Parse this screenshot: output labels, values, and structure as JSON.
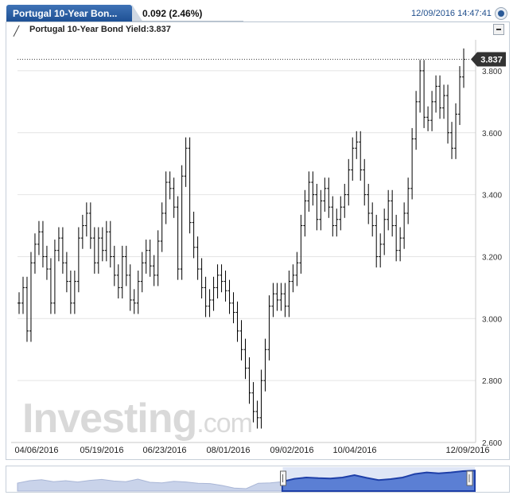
{
  "header": {
    "tab_title": "Portugal 10-Year Bon...",
    "change": "0.092 (2.46%)",
    "datetime": "12/09/2016 14:47:41"
  },
  "legend": {
    "text": "Portugal 10-Year Bond Yield:3.837"
  },
  "watermark": {
    "main": "Investing",
    "suffix": ".com"
  },
  "colors": {
    "tab": "#2b5a97",
    "line": "#000000",
    "navigator_fill": "#2a52be",
    "price_label_bg": "#333333"
  },
  "chart_data": {
    "type": "line",
    "title": "Portugal 10-Year Bond Yield",
    "xlabel": "",
    "ylabel": "",
    "x_ticks": [
      "04/06/2016",
      "05/19/2016",
      "06/23/2016",
      "08/01/2016",
      "09/02/2016",
      "10/04/2016",
      "12/09/2016"
    ],
    "y_ticks": [
      "2.600",
      "2.800",
      "3.000",
      "3.200",
      "3.400",
      "3.600",
      "3.800"
    ],
    "ylim": [
      2.6,
      3.9
    ],
    "last_value": 3.837,
    "last_value_label": "3.837",
    "grid": true,
    "series": [
      {
        "name": "Portugal 10-Year Bond Yield",
        "values": [
          3.05,
          3.1,
          2.96,
          3.18,
          3.24,
          3.28,
          3.2,
          3.16,
          3.05,
          3.22,
          3.26,
          3.18,
          3.12,
          3.05,
          3.12,
          3.26,
          3.3,
          3.34,
          3.26,
          3.18,
          3.26,
          3.22,
          3.28,
          3.2,
          3.14,
          3.1,
          3.2,
          3.14,
          3.06,
          3.05,
          3.12,
          3.18,
          3.22,
          3.17,
          3.14,
          3.25,
          3.34,
          3.44,
          3.42,
          3.36,
          3.16,
          3.46,
          3.55,
          3.31,
          3.23,
          3.16,
          3.1,
          3.04,
          3.06,
          3.1,
          3.14,
          3.12,
          3.09,
          3.05,
          3.02,
          2.96,
          2.9,
          2.84,
          2.76,
          2.7,
          2.68,
          2.8,
          2.9,
          3.04,
          3.08,
          3.06,
          3.08,
          3.04,
          3.12,
          3.14,
          3.18,
          3.3,
          3.38,
          3.44,
          3.4,
          3.32,
          3.38,
          3.42,
          3.36,
          3.3,
          3.32,
          3.36,
          3.4,
          3.48,
          3.55,
          3.57,
          3.48,
          3.4,
          3.34,
          3.3,
          3.2,
          3.24,
          3.32,
          3.38,
          3.3,
          3.22,
          3.26,
          3.34,
          3.42,
          3.58,
          3.7,
          3.8,
          3.65,
          3.64,
          3.7,
          3.75,
          3.68,
          3.72,
          3.6,
          3.55,
          3.66,
          3.78,
          3.837
        ]
      }
    ]
  },
  "navigator": {
    "values": [
      3.05,
      3.2,
      3.26,
      3.14,
      3.2,
      3.12,
      3.22,
      3.28,
      3.18,
      3.14,
      3.3,
      3.1,
      3.06,
      3.16,
      3.12,
      3.04,
      3.02,
      2.9,
      2.74,
      2.7,
      3.04,
      3.06,
      3.14,
      3.32,
      3.4,
      3.36,
      3.34,
      3.4,
      3.55,
      3.38,
      3.24,
      3.3,
      3.4,
      3.62,
      3.72,
      3.66,
      3.72,
      3.8,
      3.837
    ],
    "selected_from": 0.58,
    "selected_to": 1.0
  }
}
